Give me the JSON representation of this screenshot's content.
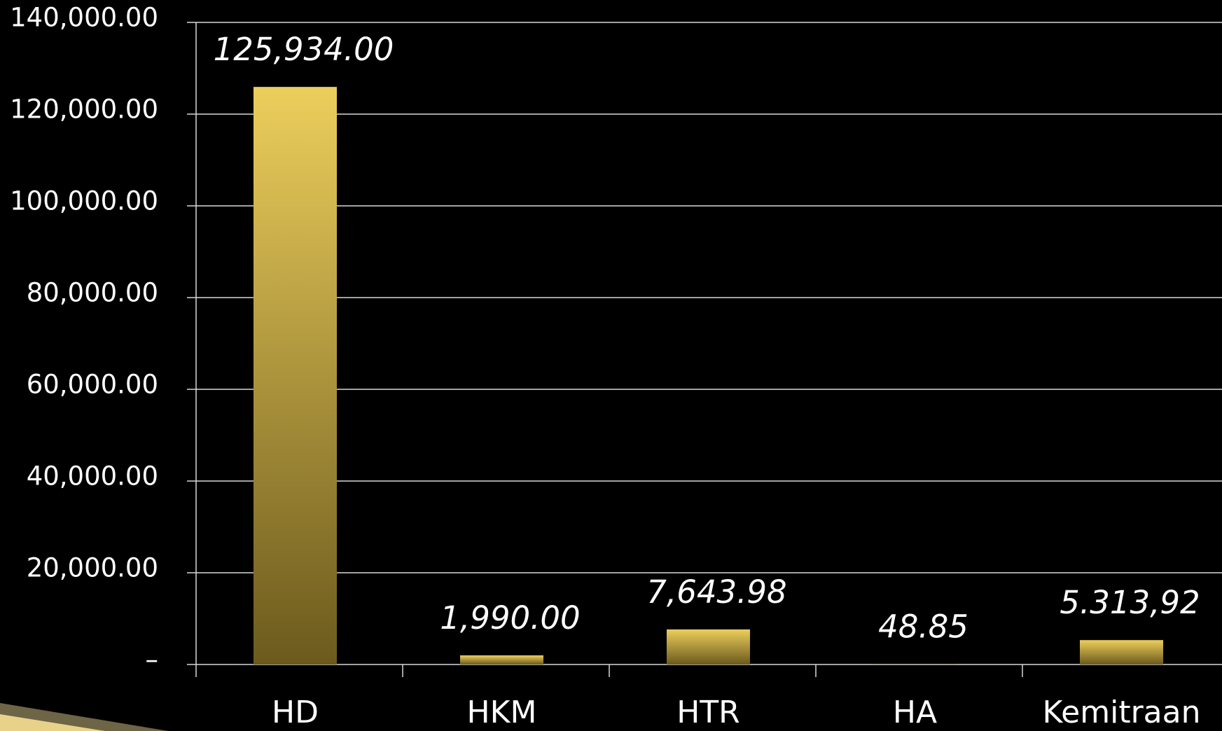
{
  "chart_data": {
    "type": "bar",
    "categories": [
      "HD",
      "HKM",
      "HTR",
      "HA",
      "Kemitraan"
    ],
    "values": [
      125934,
      1990,
      7643.98,
      48.85,
      5313.92
    ],
    "value_labels": [
      "125,934.00",
      "1,990.00",
      "7,643.98",
      "48.85",
      "5.313,92"
    ],
    "color": "#c9a93e",
    "ylim": [
      0,
      140000
    ],
    "yticks": [
      {
        "value": 0,
        "label": "–"
      },
      {
        "value": 20000,
        "label": "20,000.00"
      },
      {
        "value": 40000,
        "label": "40,000.00"
      },
      {
        "value": 60000,
        "label": "60,000.00"
      },
      {
        "value": 80000,
        "label": "80,000.00"
      },
      {
        "value": 100000,
        "label": "100,000.00"
      },
      {
        "value": 120000,
        "label": "120,000.00"
      },
      {
        "value": 140000,
        "label": "140,000.00"
      }
    ],
    "grid": true
  }
}
